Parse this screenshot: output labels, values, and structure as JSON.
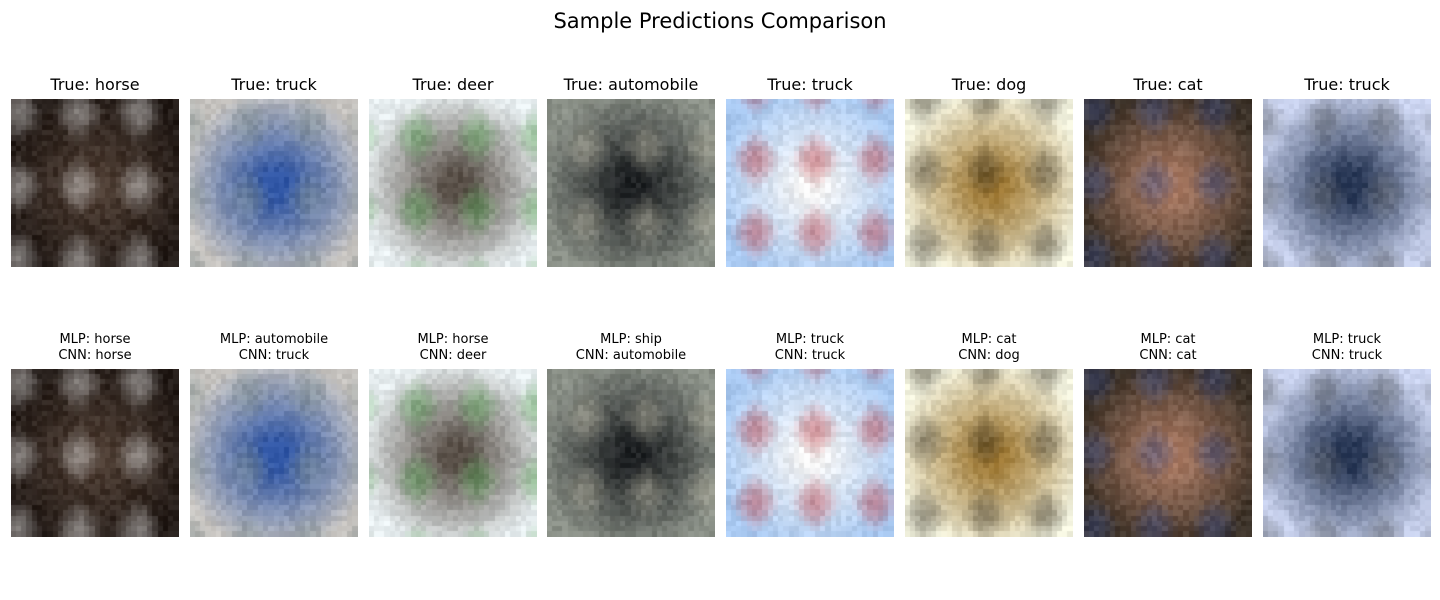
{
  "figure": {
    "title": "Sample Predictions Comparison"
  },
  "chart_data": {
    "type": "image_grid",
    "title": "Sample Predictions Comparison",
    "rows": 2,
    "cols": 8,
    "samples": [
      {
        "true_label": "True: horse",
        "mlp_label": "MLP: horse",
        "cnn_label": "CNN: horse",
        "true_class": "horse",
        "mlp_pred": "horse",
        "cnn_pred": "horse",
        "image": "horse",
        "palette": [
          "#221a16",
          "#4b3b31",
          "#e6e6e6"
        ]
      },
      {
        "true_label": "True: truck",
        "mlp_label": "MLP: automobile",
        "cnn_label": "CNN: truck",
        "true_class": "truck",
        "mlp_pred": "automobile",
        "cnn_pred": "truck",
        "image": "truck",
        "palette": [
          "#c7c4c0",
          "#2f55a4",
          "#7a8a8a"
        ]
      },
      {
        "true_label": "True: deer",
        "mlp_label": "MLP: horse",
        "cnn_label": "CNN: deer",
        "true_class": "deer",
        "mlp_pred": "horse",
        "cnn_pred": "deer",
        "image": "deer",
        "palette": [
          "#e7eef0",
          "#5a5149",
          "#4d9a48"
        ]
      },
      {
        "true_label": "True: automobile",
        "mlp_label": "MLP: ship",
        "cnn_label": "CNN: automobile",
        "true_class": "automobile",
        "mlp_pred": "ship",
        "cnn_pred": "automobile",
        "image": "automobile",
        "palette": [
          "#8a9087",
          "#1f2224",
          "#b6b3a1"
        ]
      },
      {
        "true_label": "True: truck",
        "mlp_label": "MLP: truck",
        "cnn_label": "CNN: truck",
        "true_class": "truck",
        "mlp_pred": "truck",
        "cnn_pred": "truck",
        "image": "truck",
        "palette": [
          "#a8c8f0",
          "#f3f3f3",
          "#b52d34"
        ]
      },
      {
        "true_label": "True: dog",
        "mlp_label": "MLP: cat",
        "cnn_label": "CNN: dog",
        "true_class": "dog",
        "mlp_pred": "cat",
        "cnn_pred": "dog",
        "image": "dog",
        "palette": [
          "#f2f2de",
          "#a07a35",
          "#3a3528"
        ]
      },
      {
        "true_label": "True: cat",
        "mlp_label": "MLP: cat",
        "cnn_label": "CNN: cat",
        "true_class": "cat",
        "mlp_pred": "cat",
        "cnn_pred": "cat",
        "image": "cat",
        "palette": [
          "#3c3228",
          "#a87962",
          "#3a4c86"
        ]
      },
      {
        "true_label": "True: truck",
        "mlp_label": "MLP: truck",
        "cnn_label": "CNN: truck",
        "true_class": "truck",
        "mlp_pred": "truck",
        "cnn_pred": "truck",
        "image": "truck",
        "palette": [
          "#c9d2ee",
          "#263553",
          "#5d6166"
        ]
      }
    ]
  }
}
